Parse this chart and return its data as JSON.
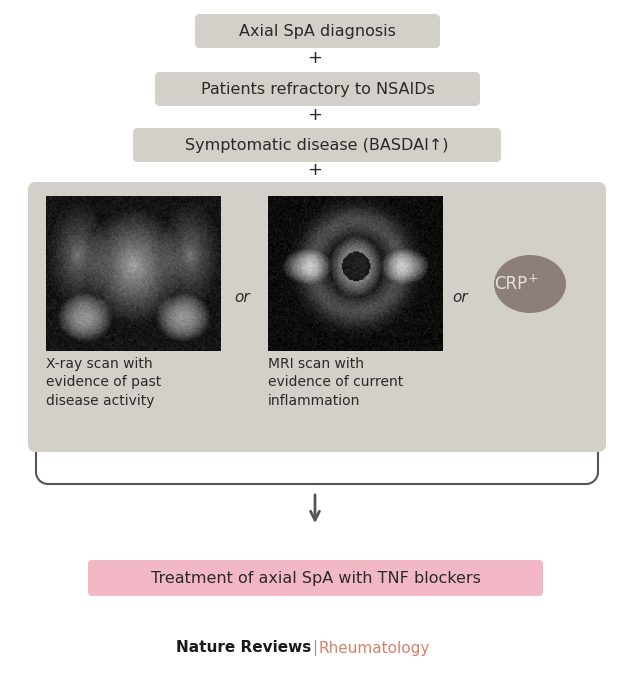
{
  "bg_color": "#ffffff",
  "box_color_gray": "#d3cfc9",
  "box_color_pink": "#f2b8c6",
  "box_color_crp": "#8c7f7a",
  "text_color_dark": "#2a2a2a",
  "arrow_color": "#555555",
  "box1_text": "Axial SpA diagnosis",
  "box2_text": "Patients refractory to NSAIDs",
  "box3_text": "Symptomatic disease (BASDAI↑)",
  "box_treatment_text": "Treatment of axial SpA with TNF blockers",
  "xray_label": "X-ray scan with\nevidence of past\ndisease activity",
  "mri_label": "MRI scan with\nevidence of current\ninflammation",
  "crp_label": "CRP⁺",
  "footer_text1": "Nature Reviews",
  "footer_sep": " | ",
  "footer_text2": "Rheumatology",
  "plus_symbol": "+",
  "or_symbol": "or",
  "figw": 6.3,
  "figh": 6.85,
  "dpi": 100
}
